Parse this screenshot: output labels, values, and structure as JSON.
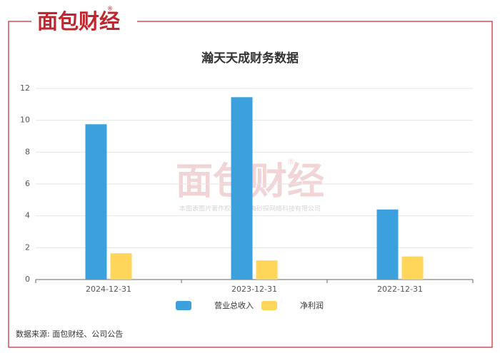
{
  "logo": {
    "text": "面包财经",
    "mark": "®"
  },
  "watermark": {
    "text": "面包财经",
    "mark": "®",
    "caption": "本图表图片著作权属于上海砂探网络科技有限公司"
  },
  "source": "数据来源: 面包财经、公司公告",
  "chart_data": {
    "type": "bar",
    "title": "瀚天天成财务数据",
    "categories": [
      "2024-12-31",
      "2023-12-31",
      "2022-12-31"
    ],
    "series": [
      {
        "name": "营业总收入",
        "color": "#3ba0dc",
        "values": [
          9.75,
          11.45,
          4.4
        ]
      },
      {
        "name": "净利润",
        "color": "#ffd55a",
        "values": [
          1.65,
          1.2,
          1.45
        ]
      }
    ],
    "ylim": [
      0,
      12
    ],
    "yticks": [
      0,
      2,
      4,
      6,
      8,
      10,
      12
    ],
    "grid": true,
    "legend": "bottom"
  }
}
